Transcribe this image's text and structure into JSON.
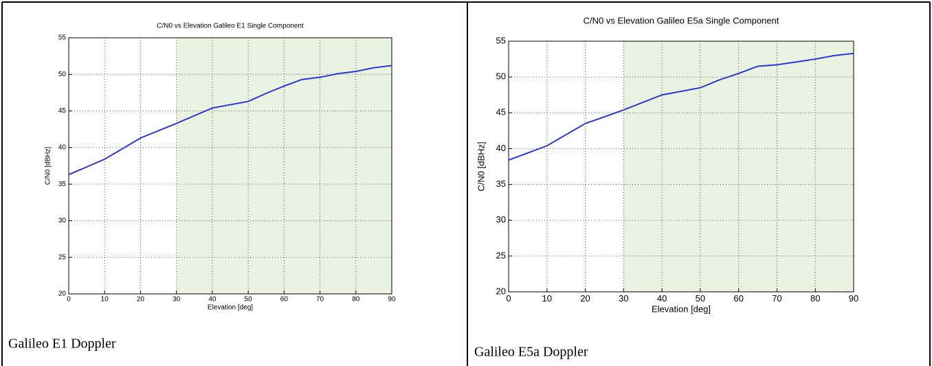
{
  "chart_data": [
    {
      "type": "line",
      "title": "C/N0 vs Elevation Galileo E1 Single Component",
      "x_label": "Elevation [deg]",
      "y_label": "C/N0 [dBHz]",
      "x": [
        0,
        10,
        20,
        30,
        40,
        50,
        55,
        60,
        65,
        70,
        75,
        80,
        85,
        90
      ],
      "series": [
        {
          "color": "#2a35e0",
          "values": [
            36.3,
            38.4,
            41.3,
            43.3,
            45.4,
            46.3,
            47.4,
            48.4,
            49.3,
            49.6,
            50.1,
            50.4,
            50.9,
            51.2
          ]
        }
      ],
      "xlim": [
        0,
        90
      ],
      "ylim": [
        20,
        55
      ],
      "xticks": [
        0,
        10,
        20,
        30,
        40,
        50,
        60,
        70,
        80,
        90
      ],
      "yticks": [
        20,
        25,
        30,
        35,
        40,
        45,
        50,
        55
      ],
      "grid": true,
      "highlight_xrange": [
        30,
        90
      ],
      "highlight_color": "#eaf2e2"
    },
    {
      "type": "line",
      "title": "C/N0 vs Elevation Galileo E5a Single Component",
      "x_label": "Elevation [deg]",
      "y_label": "C/N0 [dBHz]",
      "x": [
        0,
        10,
        20,
        30,
        40,
        50,
        55,
        60,
        65,
        70,
        75,
        80,
        85,
        90
      ],
      "series": [
        {
          "color": "#2a35e0",
          "values": [
            38.4,
            40.4,
            43.5,
            45.4,
            47.5,
            48.5,
            49.6,
            50.5,
            51.5,
            51.7,
            52.1,
            52.5,
            53.0,
            53.3
          ]
        }
      ],
      "xlim": [
        0,
        90
      ],
      "ylim": [
        20,
        55
      ],
      "xticks": [
        0,
        10,
        20,
        30,
        40,
        50,
        60,
        70,
        80,
        90
      ],
      "yticks": [
        20,
        25,
        30,
        35,
        40,
        45,
        50,
        55
      ],
      "grid": true,
      "highlight_xrange": [
        30,
        90
      ],
      "highlight_color": "#eaf2e2"
    }
  ],
  "captions": [
    "Galileo E1 Doppler",
    "Galileo E5a Doppler"
  ]
}
